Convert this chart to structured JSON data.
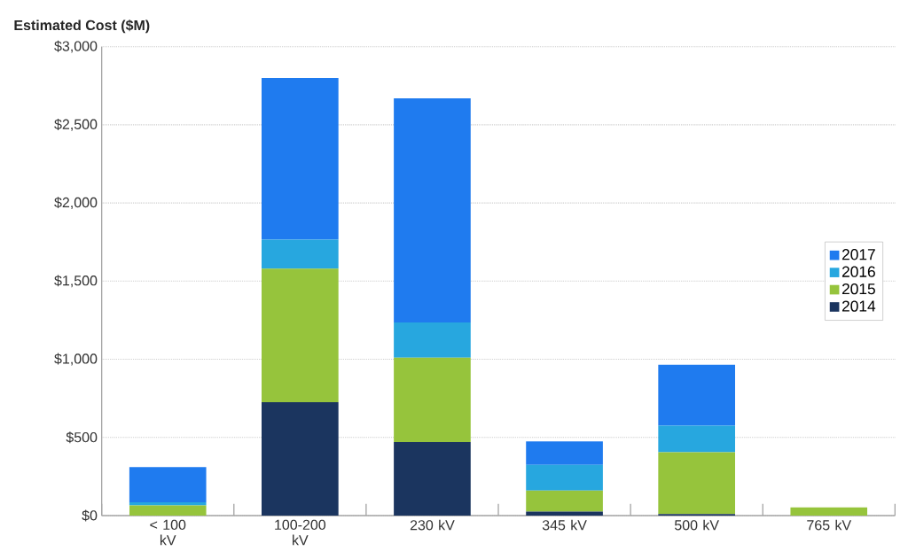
{
  "chart_data": {
    "type": "bar",
    "stacked": true,
    "ylabel": "Estimated Cost ($M)",
    "categories": [
      "< 100 kV",
      "100-200 kV",
      "230 kV",
      "345 kV",
      "500 kV",
      "765 kV"
    ],
    "series": [
      {
        "name": "2014",
        "color": "#1b355f",
        "values": [
          0,
          725,
          470,
          25,
          10,
          0
        ]
      },
      {
        "name": "2015",
        "color": "#96c43c",
        "values": [
          65,
          855,
          540,
          135,
          395,
          53
        ]
      },
      {
        "name": "2016",
        "color": "#27a7df",
        "values": [
          20,
          185,
          225,
          165,
          170,
          0
        ]
      },
      {
        "name": "2017",
        "color": "#1f7bef",
        "values": [
          225,
          1035,
          1435,
          150,
          390,
          0
        ]
      }
    ],
    "ylim": [
      0,
      3000
    ],
    "yticks": [
      {
        "value": 0,
        "label": "$0"
      },
      {
        "value": 500,
        "label": "$500"
      },
      {
        "value": 1000,
        "label": "$1,000"
      },
      {
        "value": 1500,
        "label": "$1,500"
      },
      {
        "value": 2000,
        "label": "$2,000"
      },
      {
        "value": 2500,
        "label": "$2,500"
      },
      {
        "value": 3000,
        "label": "$3,000"
      }
    ],
    "grid": "y",
    "legend": "right"
  }
}
